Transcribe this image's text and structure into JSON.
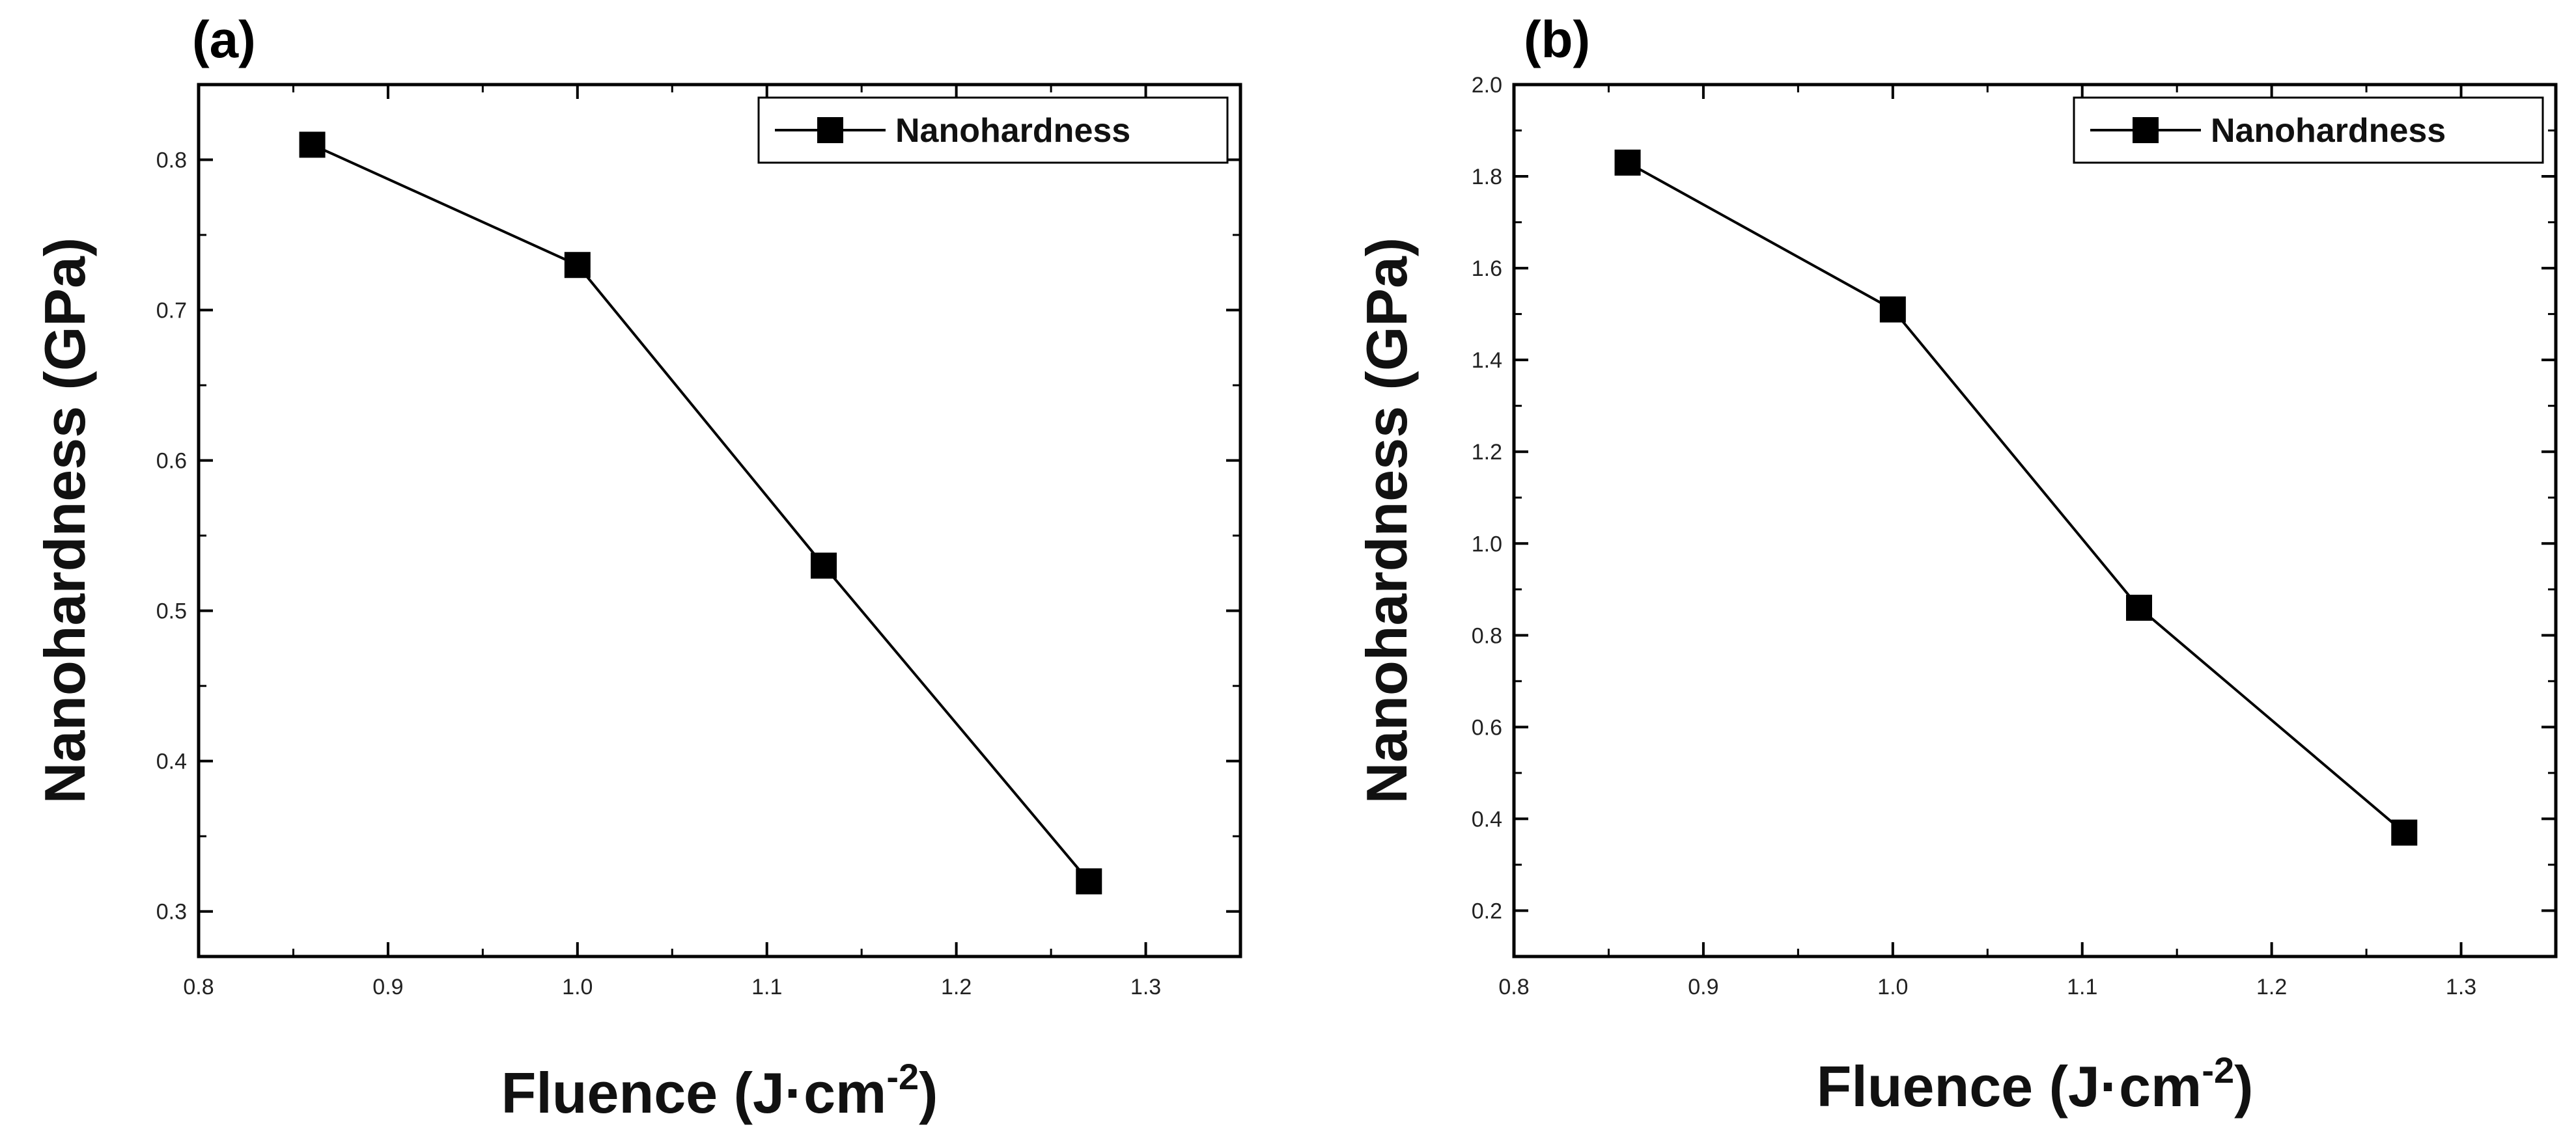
{
  "chart_data": [
    {
      "type": "line",
      "panel_label": "(a)",
      "xlabel": "Fluence (J·cm",
      "xlabel_sup": "-2",
      "xlabel_close": ")",
      "ylabel": "Nanohardness (GPa)",
      "xlim": [
        0.8,
        1.35
      ],
      "ylim": [
        0.27,
        0.85
      ],
      "xticks": [
        0.8,
        0.9,
        1.0,
        1.1,
        1.2,
        1.3
      ],
      "xtick_labels": [
        "0.8",
        "0.9",
        "1.0",
        "1.1",
        "1.2",
        "1.3"
      ],
      "yticks": [
        0.3,
        0.4,
        0.5,
        0.6,
        0.7,
        0.8
      ],
      "ytick_labels": [
        "0.3",
        "0.4",
        "0.5",
        "0.6",
        "0.7",
        "0.8"
      ],
      "legend": "top-right",
      "grid": false,
      "series": [
        {
          "name": "Nanohardness",
          "color": "#000000",
          "marker": "square",
          "x": [
            0.86,
            1.0,
            1.13,
            1.27
          ],
          "y": [
            0.81,
            0.73,
            0.53,
            0.32
          ]
        }
      ]
    },
    {
      "type": "line",
      "panel_label": "(b)",
      "xlabel": "Fluence (J·cm",
      "xlabel_sup": "-2",
      "xlabel_close": ")",
      "ylabel": "Nanohardness (GPa)",
      "xlim": [
        0.8,
        1.35
      ],
      "ylim": [
        0.1,
        2.0
      ],
      "xticks": [
        0.8,
        0.9,
        1.0,
        1.1,
        1.2,
        1.3
      ],
      "xtick_labels": [
        "0.8",
        "0.9",
        "1.0",
        "1.1",
        "1.2",
        "1.3"
      ],
      "yticks": [
        0.2,
        0.4,
        0.6,
        0.8,
        1.0,
        1.2,
        1.4,
        1.6,
        1.8,
        2.0
      ],
      "ytick_labels": [
        "0.2",
        "0.4",
        "0.6",
        "0.8",
        "1.0",
        "1.2",
        "1.4",
        "1.6",
        "1.8",
        "2.0"
      ],
      "legend": "top-right",
      "grid": false,
      "series": [
        {
          "name": "Nanohardness",
          "color": "#000000",
          "marker": "square",
          "x": [
            0.86,
            1.0,
            1.13,
            1.27
          ],
          "y": [
            1.83,
            1.51,
            0.86,
            0.37
          ]
        }
      ]
    }
  ]
}
